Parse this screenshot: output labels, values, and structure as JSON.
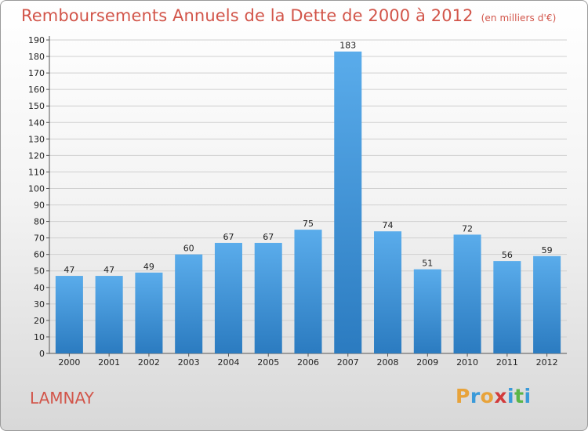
{
  "chart_data": {
    "type": "bar",
    "title": "Remboursements Annuels de la Dette de 2000 à 2012",
    "unit_note": "(en milliers d'€)",
    "categories": [
      "2000",
      "2001",
      "2002",
      "2003",
      "2004",
      "2005",
      "2006",
      "2007",
      "2008",
      "2009",
      "2010",
      "2011",
      "2012"
    ],
    "values": [
      47,
      47,
      49,
      60,
      67,
      67,
      75,
      183,
      74,
      51,
      72,
      56,
      59
    ],
    "ylim": [
      0,
      190
    ],
    "yticks": [
      0,
      10,
      20,
      30,
      40,
      50,
      60,
      70,
      80,
      90,
      100,
      110,
      120,
      130,
      140,
      150,
      160,
      170,
      180,
      190
    ],
    "grid": true,
    "bar_color_top": "#5aaceb",
    "bar_color_bottom": "#2b7bc0"
  },
  "commune": "LAMNAY",
  "logo": {
    "text": "Proxiti",
    "letters": [
      {
        "ch": "P",
        "color": "#e8a33a"
      },
      {
        "ch": "r",
        "color": "#3a9ad9"
      },
      {
        "ch": "o",
        "color": "#e8a33a"
      },
      {
        "ch": "x",
        "color": "#d23b3b"
      },
      {
        "ch": "i",
        "color": "#3a9ad9"
      },
      {
        "ch": "t",
        "color": "#5bb548"
      },
      {
        "ch": "i",
        "color": "#3a9ad9"
      }
    ]
  },
  "colors": {
    "title": "#d2554a",
    "grid": "#cfcfcf",
    "axis": "#555555"
  }
}
